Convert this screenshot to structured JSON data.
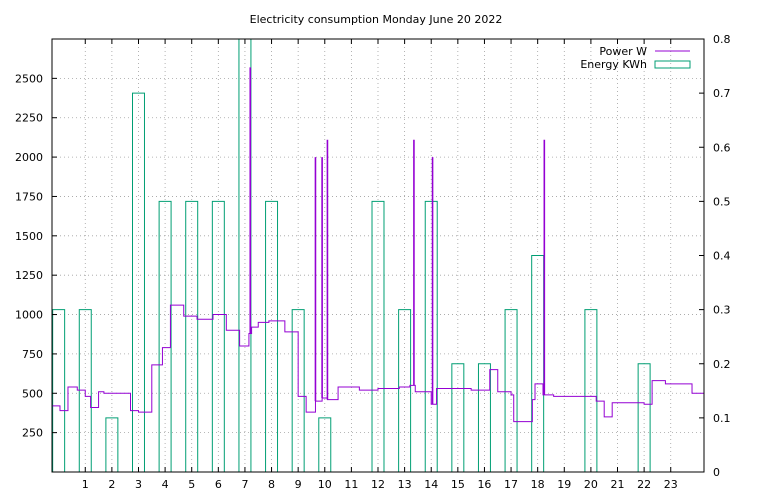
{
  "chart_data": {
    "type": "line",
    "title": "Electricity consumption Monday June 20 2022",
    "xlabel": "",
    "ylabel": "",
    "xlim": [
      -0.25,
      24.25
    ],
    "ylim": [
      0,
      2750
    ],
    "y2lim": [
      0,
      0.8
    ],
    "grid": true,
    "legend_position": "top-right",
    "x_ticks": [
      1,
      2,
      3,
      4,
      5,
      6,
      7,
      8,
      9,
      10,
      11,
      12,
      13,
      14,
      15,
      16,
      17,
      18,
      19,
      20,
      21,
      22,
      23
    ],
    "y_ticks": [
      250,
      500,
      750,
      1000,
      1250,
      1500,
      1750,
      2000,
      2250,
      2500
    ],
    "y2_ticks": [
      0,
      0.1,
      0.2,
      0.3,
      0.4,
      0.5,
      0.6,
      0.7,
      0.8
    ],
    "series": [
      {
        "name": "Power W",
        "color": "#9400d3",
        "axis": "left",
        "style": "steps",
        "x": [
          -0.25,
          0.05,
          0.35,
          0.7,
          1.0,
          1.2,
          1.5,
          1.7,
          2.6,
          2.7,
          3.0,
          3.5,
          3.9,
          4.2,
          4.7,
          5.2,
          5.8,
          6.3,
          6.8,
          7.15,
          7.25,
          7.5,
          7.9,
          8.5,
          9.0,
          9.3,
          9.65,
          9.7,
          9.9,
          10.1,
          10.5,
          11.3,
          12.0,
          12.8,
          13.2,
          13.4,
          14.0,
          14.2,
          14.8,
          15.5,
          16.2,
          16.5,
          17.0,
          17.1,
          17.8,
          17.9,
          18.2,
          18.6,
          19.0,
          19.5,
          20.2,
          20.5,
          20.8,
          21.5,
          22.0,
          22.3,
          22.8,
          23.3,
          23.8,
          24.25
        ],
        "y": [
          420,
          390,
          540,
          520,
          480,
          410,
          510,
          500,
          500,
          390,
          380,
          680,
          790,
          1060,
          990,
          970,
          1000,
          900,
          800,
          880,
          920,
          950,
          960,
          890,
          480,
          380,
          450,
          450,
          470,
          460,
          540,
          520,
          530,
          540,
          550,
          510,
          430,
          530,
          530,
          520,
          650,
          510,
          490,
          320,
          460,
          560,
          490,
          480,
          480,
          480,
          450,
          350,
          440,
          440,
          430,
          580,
          560,
          560,
          500,
          500
        ]
      },
      {
        "name": "Energy KWh",
        "color": "#009e73",
        "axis": "right",
        "style": "boxes",
        "x": [
          0,
          1,
          2,
          3,
          4,
          5,
          6,
          7,
          8,
          9,
          10,
          11,
          12,
          13,
          14,
          15,
          16,
          17,
          18,
          19,
          20,
          21,
          22,
          23
        ],
        "values": [
          0.3,
          0.3,
          0.1,
          0.7,
          0.5,
          0.5,
          0.5,
          0.8,
          0.5,
          0.3,
          0.1,
          0,
          0.5,
          0.3,
          0.5,
          0.2,
          0.2,
          0.3,
          0.4,
          0,
          0.3,
          0,
          0.2,
          0
        ]
      }
    ],
    "spikes": [
      {
        "x": 7.2,
        "y": 2570
      },
      {
        "x": 9.65,
        "y": 2000
      },
      {
        "x": 9.9,
        "y": 2000
      },
      {
        "x": 10.1,
        "y": 2110
      },
      {
        "x": 13.35,
        "y": 2110
      },
      {
        "x": 14.05,
        "y": 2000
      },
      {
        "x": 18.25,
        "y": 2110
      }
    ]
  }
}
